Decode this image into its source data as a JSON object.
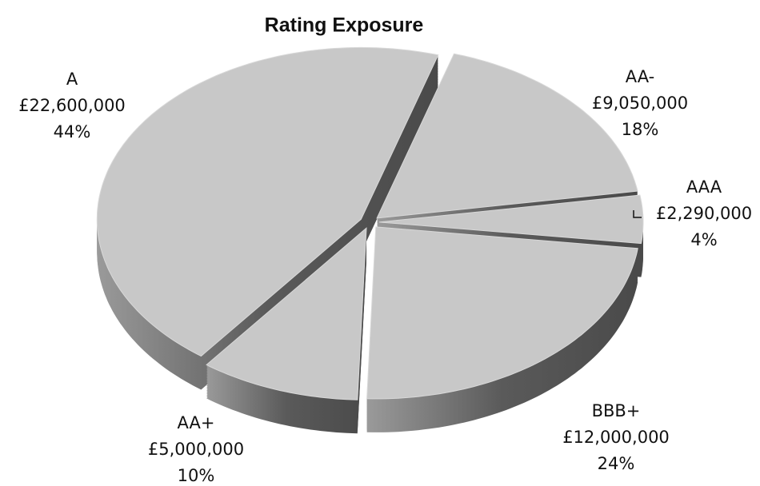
{
  "chart_data": {
    "type": "pie",
    "title": "Rating Exposure",
    "categories": [
      "AA-",
      "AAA",
      "BBB+",
      "AA+",
      "A"
    ],
    "values": [
      9050000,
      2290000,
      12000000,
      5000000,
      22600000
    ],
    "value_labels": [
      "£9,050,000",
      "£2,290,000",
      "£12,000,000",
      "£5,000,000",
      "£22,600,000"
    ],
    "percent_labels": [
      "18%",
      "4%",
      "24%",
      "10%",
      "44%"
    ],
    "color": "#c8c8c8"
  }
}
